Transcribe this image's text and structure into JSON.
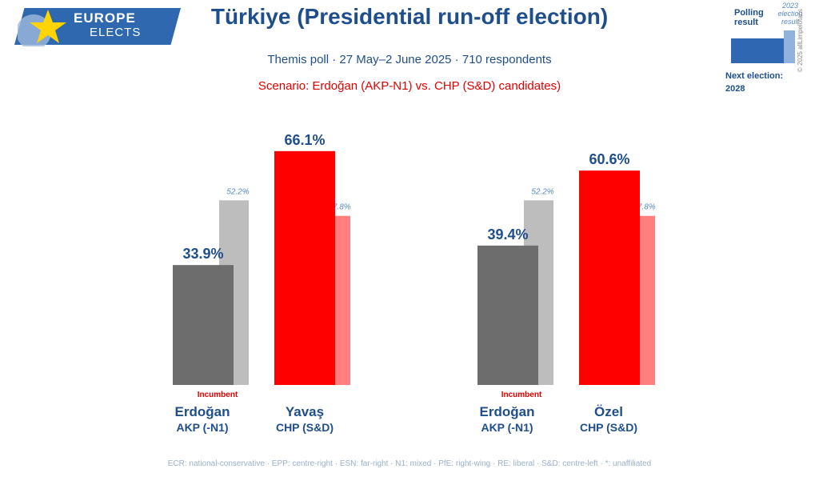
{
  "logo": {
    "line1": "EUROPE",
    "line2": "ELECTS"
  },
  "title": "Türkiye (Presidential run-off election)",
  "subtitle": "Themis poll · 27 May–2 June 2025 · 710 respondents",
  "scenario": "Scenario: Erdoğan (AKP-N1) vs. CHP (S&D) candidates)",
  "legend": {
    "polling_result": "Polling result",
    "election_result": "2023 election result",
    "next_election_label": "Next election:",
    "next_election_year": "2028",
    "copyright": "© 2025 allLimpelotacs",
    "poll_color": "#2f67b2",
    "election_color": "#8fb3dd"
  },
  "chart_data": [
    {
      "type": "bar",
      "categories": [
        "Erdoğan",
        "Yavaş"
      ],
      "parties": [
        "AKP (-N1)",
        "CHP (S&D)"
      ],
      "poll_values": [
        33.9,
        66.1
      ],
      "election_values": [
        52.2,
        47.8
      ],
      "poll_labels": [
        "33.9%",
        "66.1%"
      ],
      "election_labels": [
        "52.2%",
        "47.8%"
      ],
      "colors": [
        "#6d6d6d",
        "#ff0000"
      ],
      "election_colors": [
        "#bdbdbd",
        "#ff7f7f"
      ],
      "incumbent_index": 0,
      "incumbent_label": "Incumbent"
    },
    {
      "type": "bar",
      "categories": [
        "Erdoğan",
        "Özel"
      ],
      "parties": [
        "AKP (-N1)",
        "CHP (S&D)"
      ],
      "poll_values": [
        39.4,
        60.6
      ],
      "election_values": [
        52.2,
        47.8
      ],
      "poll_labels": [
        "39.4%",
        "60.6%"
      ],
      "election_labels": [
        "52.2%",
        "47.8%"
      ],
      "colors": [
        "#6d6d6d",
        "#ff0000"
      ],
      "election_colors": [
        "#bdbdbd",
        "#ff7f7f"
      ],
      "incumbent_index": 0,
      "incumbent_label": "Incumbent"
    }
  ],
  "footer": "ECR: national-conservative · EPP: centre-right · ESN: far-right · N1: mixed · PfE: right-wing · RE: liberal · S&D: centre-left · *: unaffiliated"
}
